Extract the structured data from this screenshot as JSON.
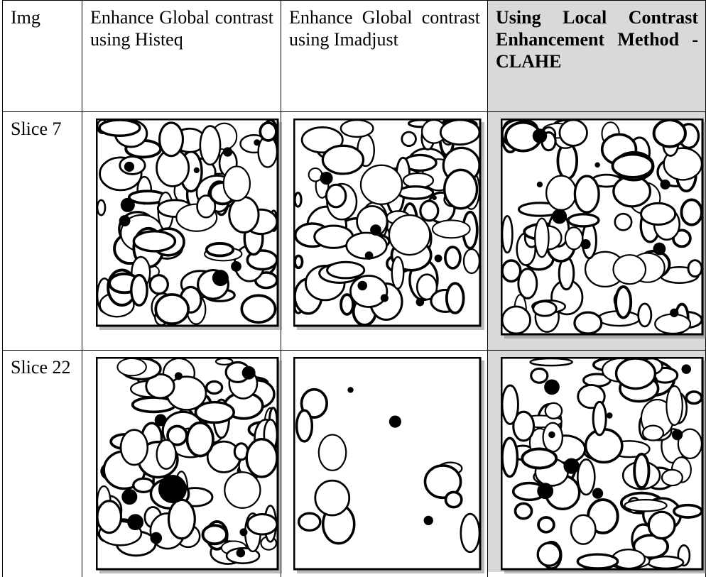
{
  "table": {
    "header": [
      "Img",
      "Enhance Global contrast using Histeq",
      "Enhance Global contrast using Imadjust",
      "Using Local Contrast Enhancement Method -CLAHE"
    ],
    "rows": [
      [
        "Slice 7"
      ],
      [
        "Slice 22"
      ]
    ]
  }
}
